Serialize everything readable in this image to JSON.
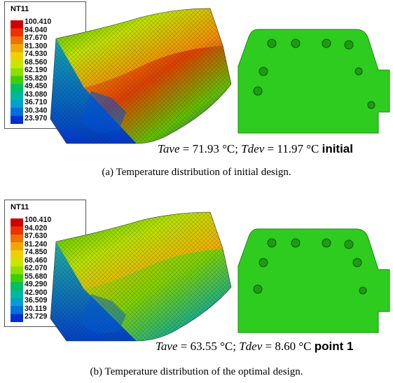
{
  "legend": {
    "title": "NT11",
    "colors": [
      "#d10000",
      "#f03000",
      "#f07000",
      "#f0a800",
      "#f0d000",
      "#c8e600",
      "#8ae000",
      "#3cd000",
      "#00c060",
      "#00b8a0",
      "#00a0d0",
      "#0070e0",
      "#0030d0"
    ]
  },
  "panels": [
    {
      "legend_values": [
        "100.410",
        "94.040",
        "87.670",
        "81.300",
        "74.930",
        "68.560",
        "62.190",
        "55.820",
        "49.450",
        "43.080",
        "36.710",
        "30.340",
        "23.970"
      ],
      "tave_label": "Tave",
      "tave_value": " = 71.93 °C;",
      "tdev_label": "Tdev",
      "tdev_value": " = 11.97 °C",
      "tag": "initial",
      "caption": "(a) Temperature distribution of initial design."
    },
    {
      "legend_values": [
        "100.410",
        "94.020",
        "87.630",
        "81.240",
        "74.850",
        "68.460",
        "62.070",
        "55.680",
        "49.290",
        "42.900",
        "36.509",
        "30.119",
        "23.729"
      ],
      "tave_label": "Tave",
      "tave_value": " = 63.55 °C;",
      "tdev_label": "Tdev",
      "tdev_value": " = 8.60 °C",
      "tag": "point 1",
      "caption": "(b) Temperature distribution of the optimal design."
    }
  ]
}
